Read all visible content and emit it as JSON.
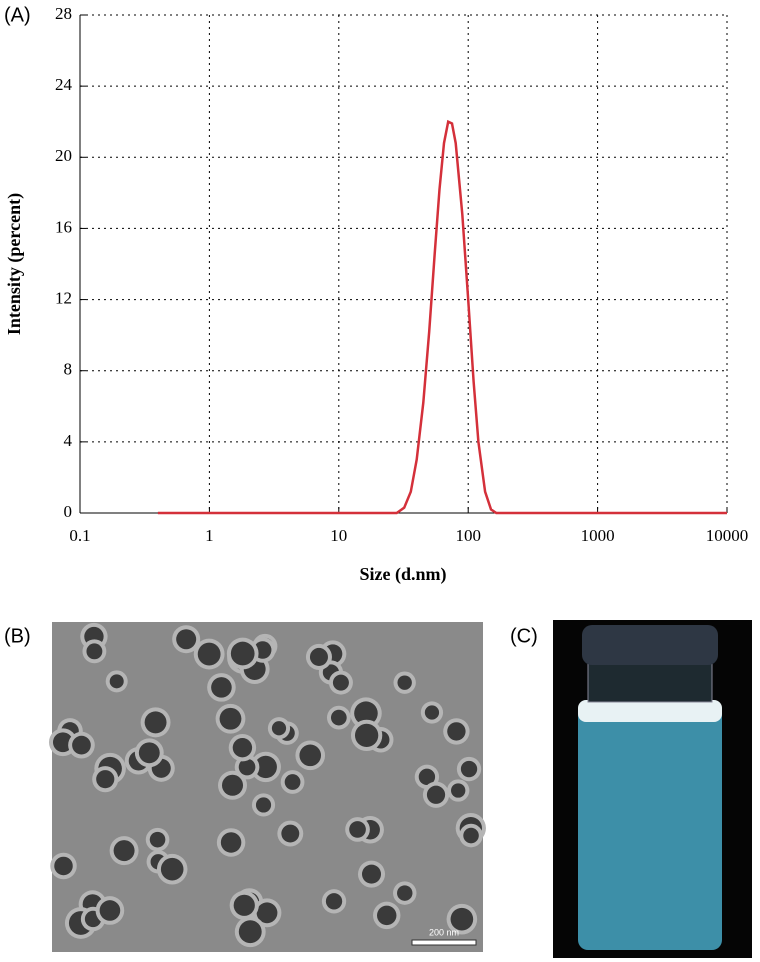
{
  "chart_data": {
    "type": "line",
    "x_label": "Size (d.nm)",
    "y_label": "Intensity (percent)",
    "x": [
      0.4,
      1,
      10,
      28,
      32,
      36,
      40,
      45,
      50,
      55,
      60,
      65,
      70,
      75,
      80,
      90,
      100,
      110,
      120,
      135,
      150,
      165,
      1000,
      10000
    ],
    "values": [
      0,
      0,
      0,
      0,
      0.3,
      1.2,
      3,
      6.2,
      10.2,
      14.5,
      18.2,
      20.8,
      22,
      21.9,
      20.8,
      16.8,
      12,
      7.4,
      4,
      1.2,
      0.2,
      0,
      0,
      0
    ],
    "color": "#d4303a",
    "xlog": true,
    "xlim": [
      0.1,
      10000
    ],
    "xticks": [
      0.1,
      1,
      10,
      100,
      1000,
      10000
    ],
    "ylim": [
      0,
      28
    ],
    "yticks": [
      0,
      4,
      8,
      12,
      16,
      20,
      24,
      28
    ],
    "grid": true
  },
  "panel_labels": [
    "(A)",
    "(B)",
    "(C)"
  ],
  "scale_bar": "200 nm"
}
